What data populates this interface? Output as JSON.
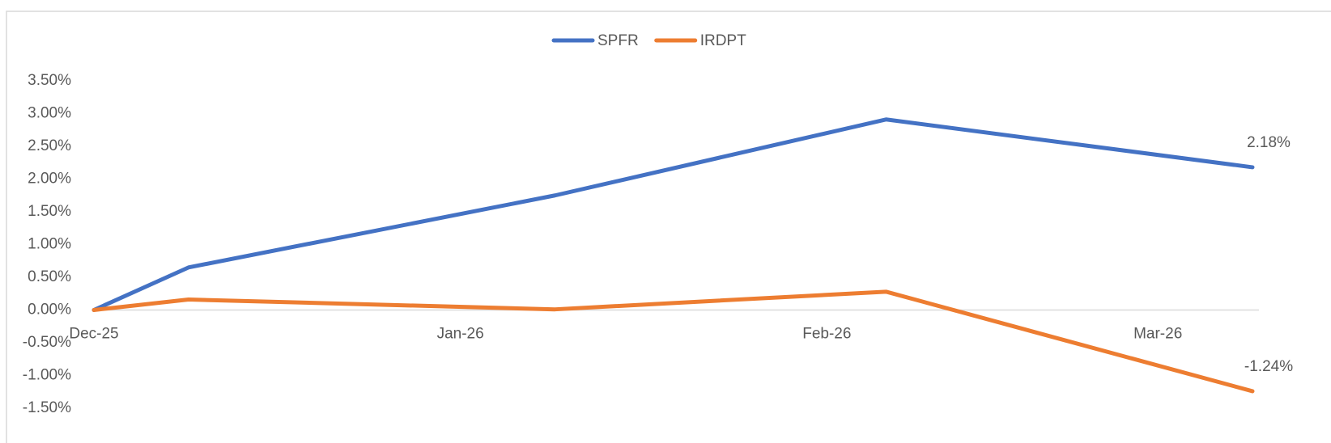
{
  "chart_data": {
    "type": "line",
    "x": [
      "2025-12-01",
      "2025-12-09",
      "2026-01-09",
      "2026-02-06",
      "2026-03-09"
    ],
    "xlim": [
      "2025-12-01",
      "2026-03-09"
    ],
    "xticks": [
      {
        "value": "2025-12-01",
        "label": "Dec-25"
      },
      {
        "value": "2026-01-01",
        "label": "Jan-26"
      },
      {
        "value": "2026-02-01",
        "label": "Feb-26"
      },
      {
        "value": "2026-03-01",
        "label": "Mar-26"
      }
    ],
    "series": [
      {
        "name": "SPFR",
        "color": "#4472c4",
        "values": [
          0,
          0.65,
          1.75,
          2.91,
          2.18
        ],
        "value_labels": [
          null,
          null,
          null,
          null,
          "2.18%"
        ]
      },
      {
        "name": "IRDPT",
        "color": "#ed7d31",
        "values": [
          0,
          0.16,
          0.01,
          0.28,
          -1.24
        ],
        "value_labels": [
          null,
          null,
          null,
          null,
          "-1.24%"
        ]
      }
    ],
    "ylim": [
      -1.5,
      3.5
    ],
    "yticks": [
      {
        "value": -1.5,
        "label": "-1.50%"
      },
      {
        "value": -1,
        "label": "-1.00%"
      },
      {
        "value": -0.5,
        "label": "-0.50%"
      },
      {
        "value": 0,
        "label": "0.00%"
      },
      {
        "value": 0.5,
        "label": "0.50%"
      },
      {
        "value": 1,
        "label": "1.00%"
      },
      {
        "value": 1.5,
        "label": "1.50%"
      },
      {
        "value": 2,
        "label": "2.00%"
      },
      {
        "value": 2.5,
        "label": "2.50%"
      },
      {
        "value": 3,
        "label": "3.00%"
      },
      {
        "value": 3.5,
        "label": "3.50%"
      }
    ],
    "legend": "top"
  }
}
